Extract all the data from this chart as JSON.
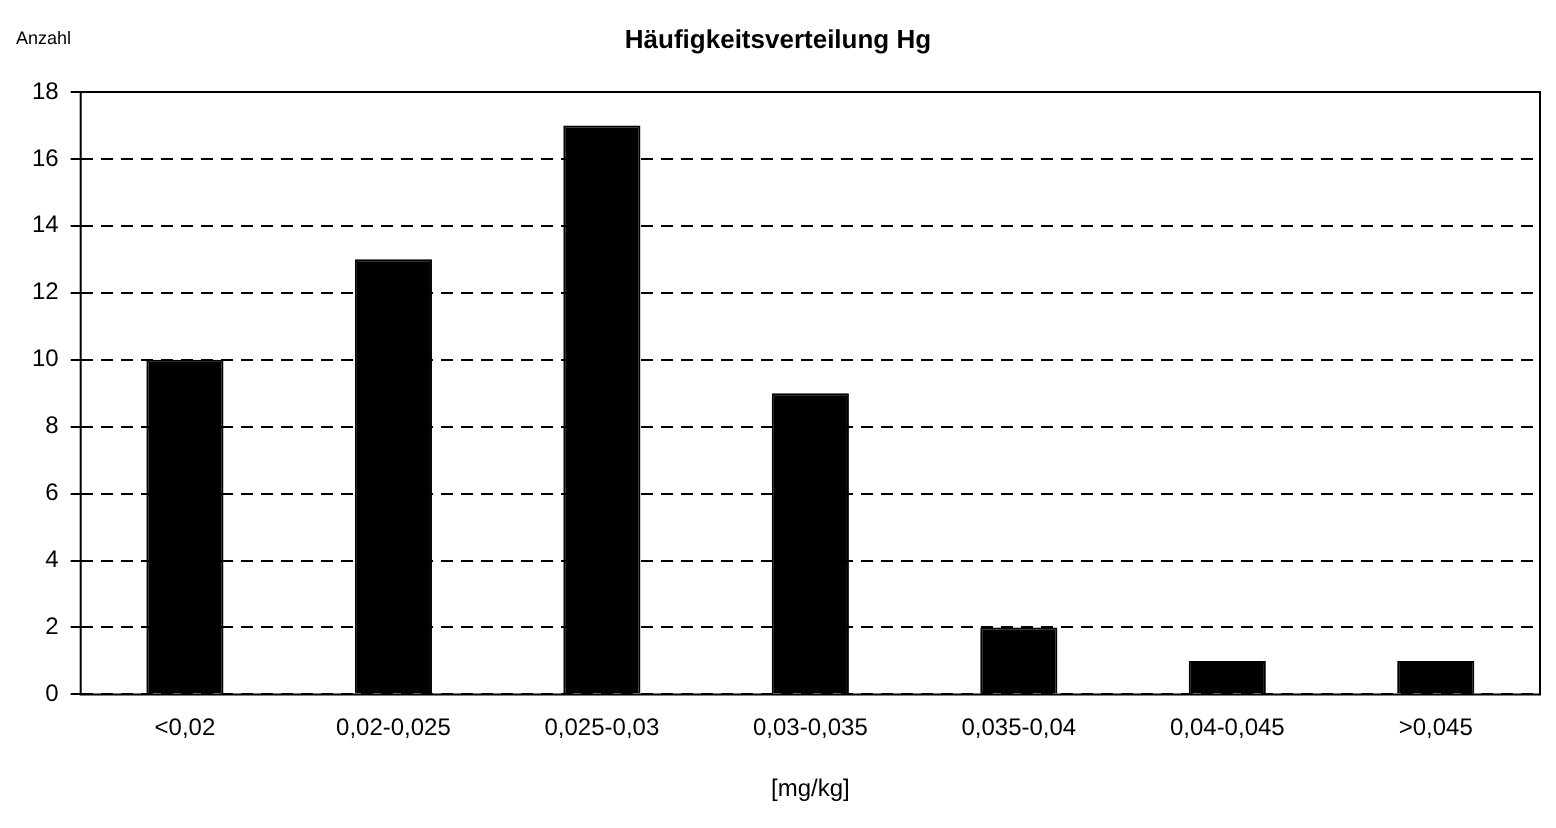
{
  "chart_data": {
    "type": "bar",
    "title": "Häufigkeitsverteilung Hg",
    "ylabel": "Anzahl",
    "xlabel": "[mg/kg]",
    "categories": [
      "<0,02",
      "0,02-0,025",
      "0,025-0,03",
      "0,03-0,035",
      "0,035-0,04",
      "0,04-0,045",
      ">0,045"
    ],
    "values": [
      10,
      13,
      17,
      9,
      2,
      1,
      1
    ],
    "color": "#000000",
    "ylim": [
      0,
      18
    ],
    "yticks": [
      0,
      2,
      4,
      6,
      8,
      10,
      12,
      14,
      16,
      18
    ],
    "grid": "y",
    "line_style": "dashed",
    "legend": false
  }
}
